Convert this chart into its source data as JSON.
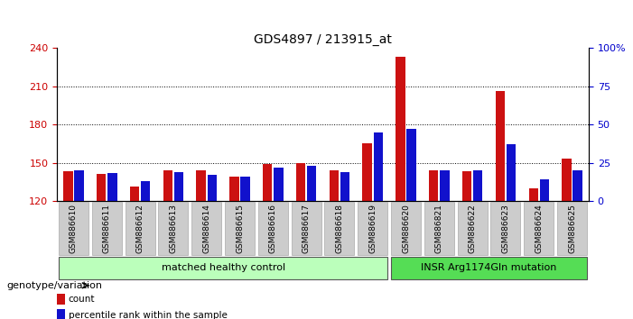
{
  "title": "GDS4897 / 213915_at",
  "samples": [
    "GSM886610",
    "GSM886611",
    "GSM886612",
    "GSM886613",
    "GSM886614",
    "GSM886615",
    "GSM886616",
    "GSM886617",
    "GSM886618",
    "GSM886619",
    "GSM886620",
    "GSM886821",
    "GSM886622",
    "GSM886623",
    "GSM886624",
    "GSM886625"
  ],
  "count_values": [
    143,
    141,
    131,
    144,
    144,
    139,
    149,
    150,
    144,
    165,
    233,
    144,
    143,
    206,
    130,
    153
  ],
  "percentile_values": [
    20,
    18,
    13,
    19,
    17,
    16,
    22,
    23,
    19,
    45,
    47,
    20,
    20,
    37,
    14,
    20
  ],
  "ylim_left": [
    120,
    240
  ],
  "ylim_right": [
    0,
    100
  ],
  "yticks_left": [
    120,
    150,
    180,
    210,
    240
  ],
  "yticks_right": [
    0,
    25,
    50,
    75,
    100
  ],
  "bar_color_red": "#cc1111",
  "bar_color_blue": "#1111cc",
  "group1_count": 10,
  "group2_count": 6,
  "group1_label": "matched healthy control",
  "group2_label": "INSR Arg1174Gln mutation",
  "group1_color": "#bbffbb",
  "group2_color": "#55dd55",
  "legend_count": "count",
  "legend_pct": "percentile rank within the sample",
  "tick_label_color_left": "#cc0000",
  "tick_label_color_right": "#0000cc",
  "genotype_label": "genotype/variation",
  "xtick_bg_color": "#cccccc"
}
